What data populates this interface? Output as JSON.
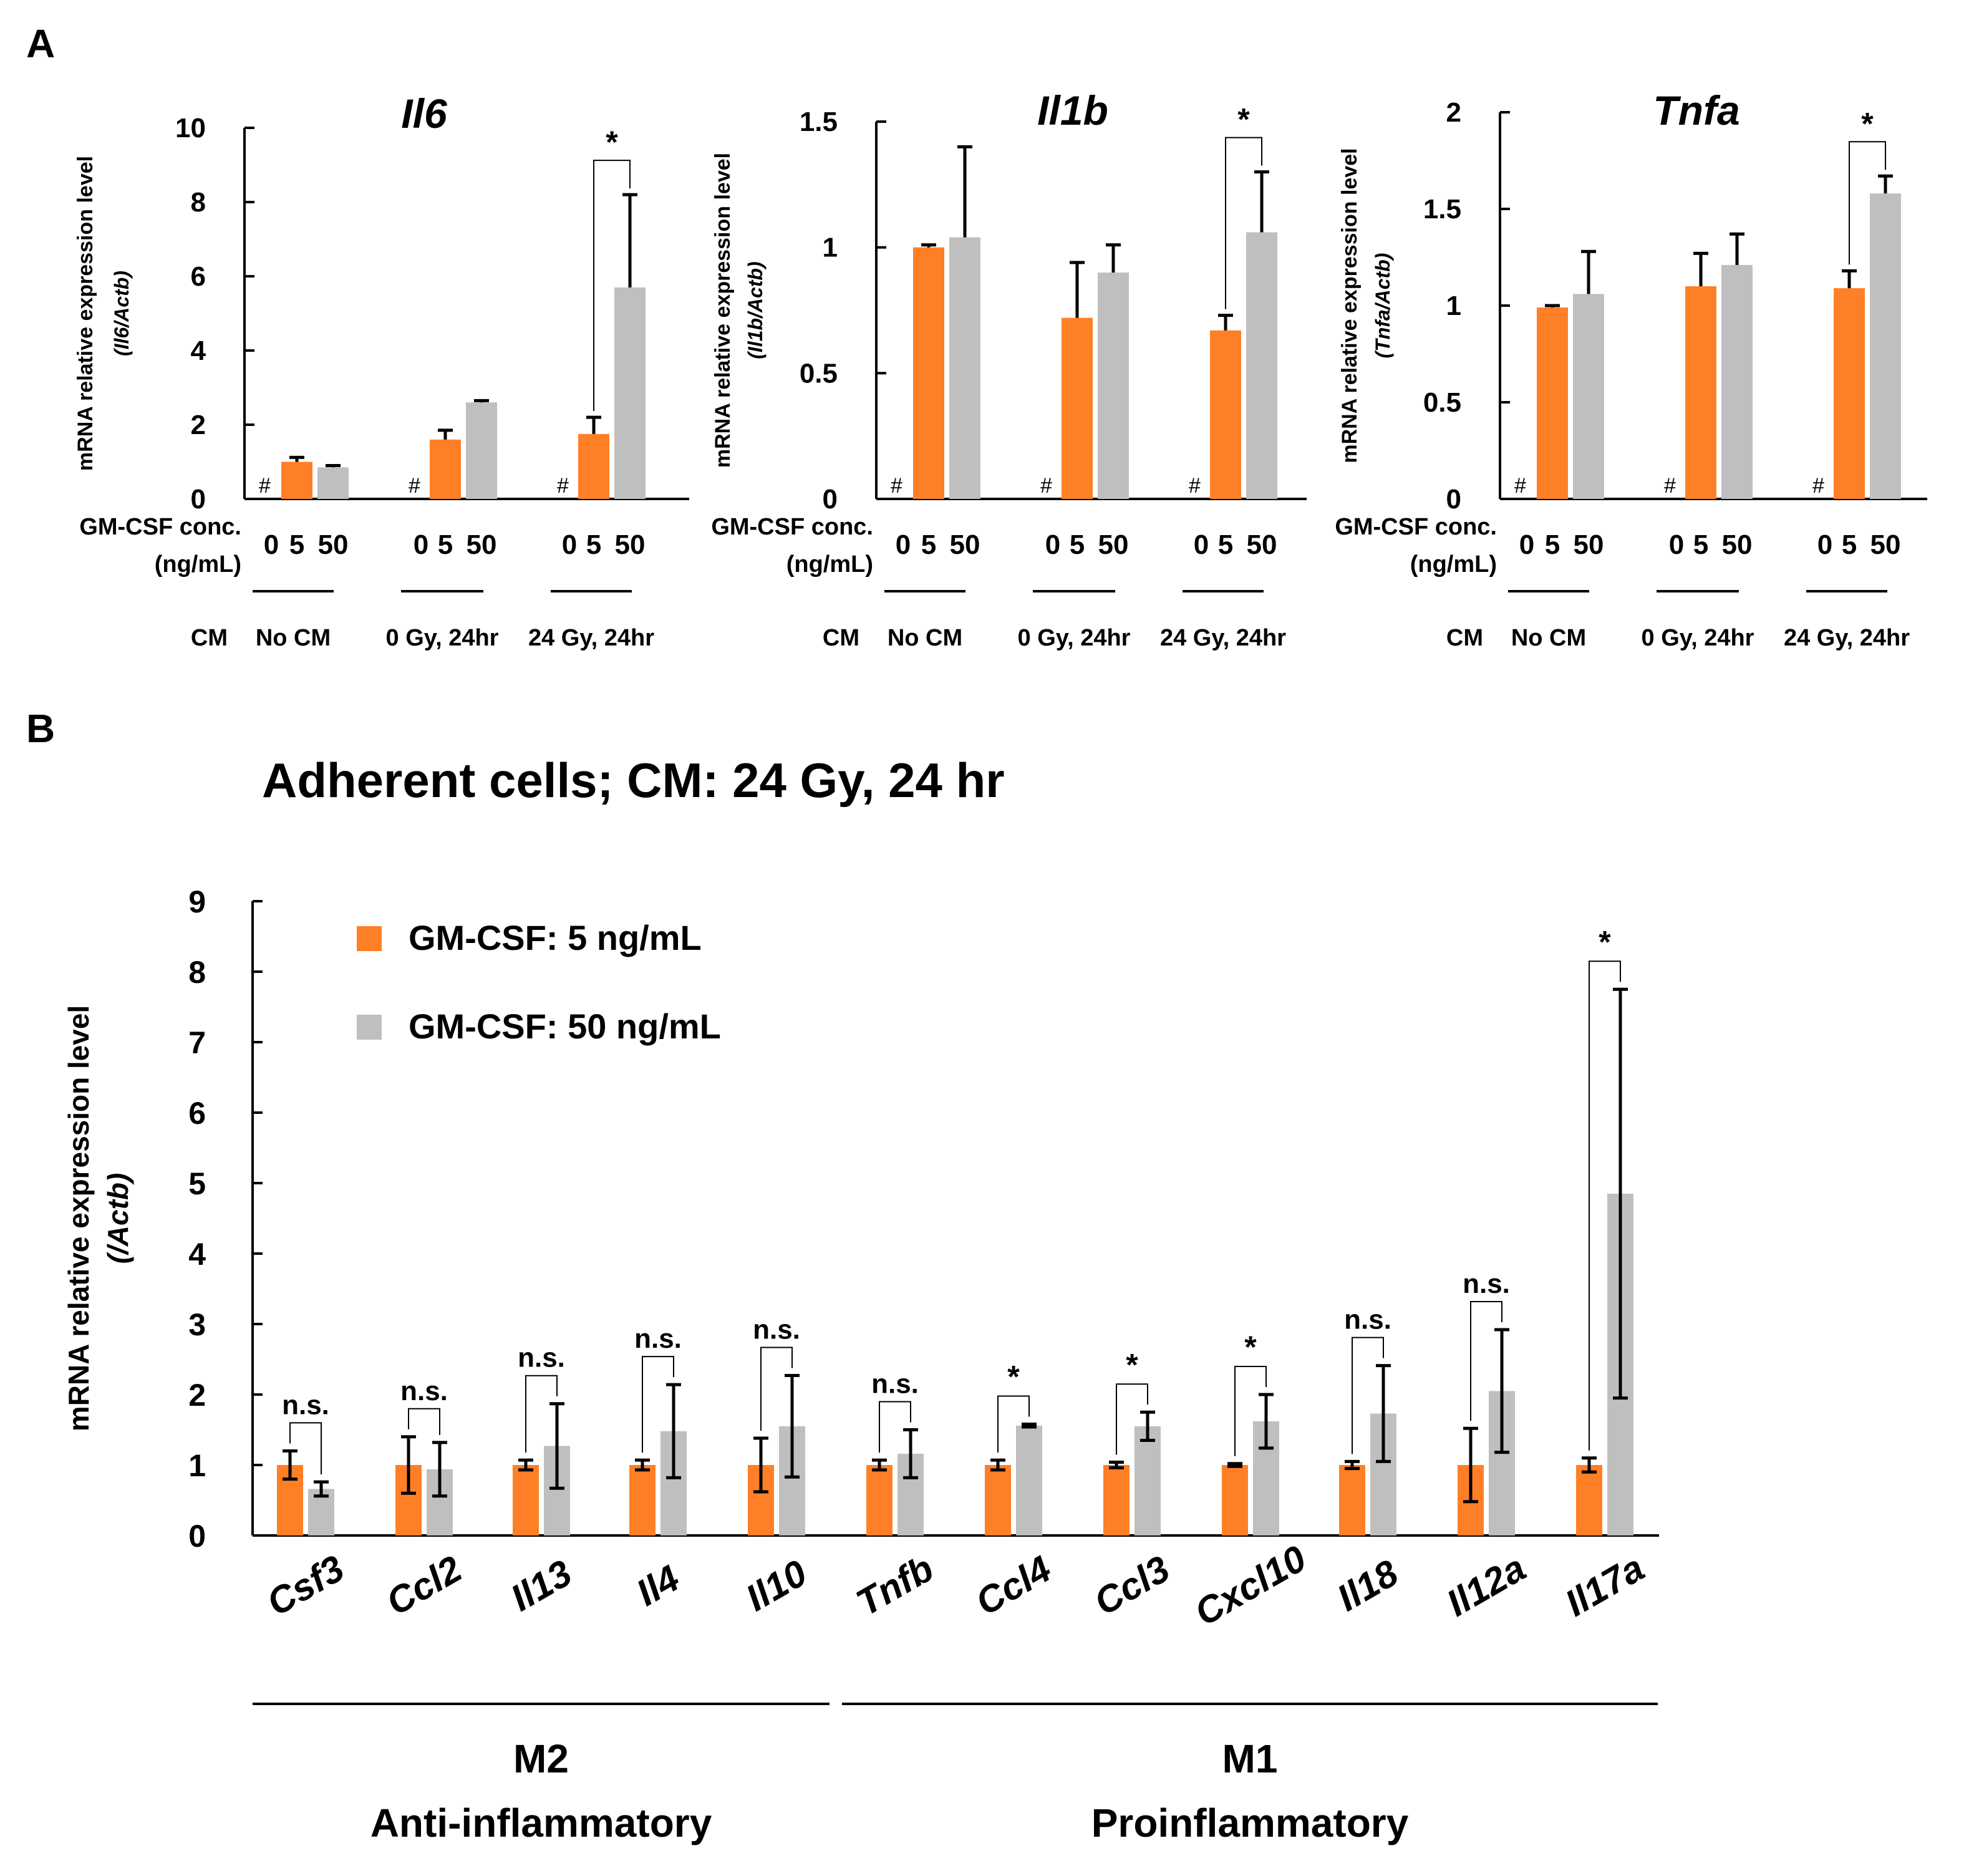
{
  "panel_labels": {
    "a": "A",
    "b": "B"
  },
  "chart_data": [
    {
      "type": "bar",
      "title": "Il6",
      "ylabel": "mRNA relative expression level",
      "ylabel_unit": "(Il6/Actb)",
      "ylim": [
        0,
        10
      ],
      "yticks": [
        "0",
        "2",
        "4",
        "6",
        "8",
        "10"
      ],
      "dose_label_1": "GM-CSF conc.",
      "dose_label_2": "(ng/mL)",
      "doses": [
        "0",
        "5",
        "50"
      ],
      "cm_label": "CM",
      "groups": [
        "No CM",
        "0 Gy, 24hr",
        "24 Gy, 24hr"
      ],
      "missing_marker": "#",
      "series": [
        {
          "name": "5 ng/mL",
          "color": "#FF7F27",
          "values": [
            1.0,
            1.6,
            1.75
          ],
          "errors": [
            0.12,
            0.25,
            0.45
          ]
        },
        {
          "name": "50 ng/mL",
          "color": "#BFBFBF",
          "values": [
            0.85,
            2.6,
            5.7
          ],
          "errors": [
            0.05,
            0.05,
            2.5
          ]
        }
      ],
      "significance": {
        "group_index": 2,
        "label": "*"
      }
    },
    {
      "type": "bar",
      "title": "Il1b",
      "ylabel": "mRNA relative expression level",
      "ylabel_unit": "(Il1b/Actb)",
      "ylim": [
        0,
        1.5
      ],
      "yticks": [
        "0",
        "0.5",
        "1",
        "1.5"
      ],
      "dose_label_1": "GM-CSF conc.",
      "dose_label_2": "(ng/mL)",
      "doses": [
        "0",
        "5",
        "50"
      ],
      "cm_label": "CM",
      "groups": [
        "No CM",
        "0 Gy, 24hr",
        "24 Gy, 24hr"
      ],
      "missing_marker": "#",
      "series": [
        {
          "name": "5 ng/mL",
          "color": "#FF7F27",
          "values": [
            1.0,
            0.72,
            0.67
          ],
          "errors": [
            0.01,
            0.22,
            0.06
          ]
        },
        {
          "name": "50 ng/mL",
          "color": "#BFBFBF",
          "values": [
            1.04,
            0.9,
            1.06
          ],
          "errors": [
            0.36,
            0.11,
            0.24
          ]
        }
      ],
      "significance": {
        "group_index": 2,
        "label": "*"
      }
    },
    {
      "type": "bar",
      "title": "Tnfa",
      "ylabel": "mRNA relative expression level",
      "ylabel_unit": "(Tnfa/Actb)",
      "ylim": [
        0,
        2
      ],
      "yticks": [
        "0",
        "0.5",
        "1",
        "1.5",
        "2"
      ],
      "dose_label_1": "GM-CSF conc.",
      "dose_label_2": "(ng/mL)",
      "doses": [
        "0",
        "5",
        "50"
      ],
      "cm_label": "CM",
      "groups": [
        "No CM",
        "0 Gy, 24hr",
        "24 Gy, 24hr"
      ],
      "missing_marker": "#",
      "series": [
        {
          "name": "5 ng/mL",
          "color": "#FF7F27",
          "values": [
            0.99,
            1.1,
            1.09
          ],
          "errors": [
            0.01,
            0.17,
            0.09
          ]
        },
        {
          "name": "50 ng/mL",
          "color": "#BFBFBF",
          "values": [
            1.06,
            1.21,
            1.58
          ],
          "errors": [
            0.22,
            0.16,
            0.09
          ]
        }
      ],
      "significance": {
        "group_index": 2,
        "label": "*"
      }
    },
    {
      "type": "bar",
      "title": "Adherent cells; CM: 24 Gy, 24 hr",
      "ylabel": "mRNA relative expression level",
      "ylabel_unit": "(/Actb)",
      "ylim": [
        0,
        9
      ],
      "yticks": [
        "0",
        "1",
        "2",
        "3",
        "4",
        "5",
        "6",
        "7",
        "8",
        "9"
      ],
      "categories": [
        "Csf3",
        "Ccl2",
        "Il13",
        "Il4",
        "Il10",
        "Tnfb",
        "Ccl4",
        "Ccl3",
        "Cxcl10",
        "Il18",
        "Il12a",
        "Il17a"
      ],
      "series": [
        {
          "name": "GM-CSF: 5 ng/mL",
          "color": "#FF7F27",
          "values": [
            1.0,
            1.0,
            1.0,
            1.0,
            1.0,
            1.0,
            1.0,
            1.0,
            1.0,
            1.0,
            1.0,
            1.0
          ],
          "errors": [
            0.2,
            0.4,
            0.07,
            0.07,
            0.38,
            0.07,
            0.07,
            0.04,
            0.02,
            0.05,
            0.52,
            0.1
          ]
        },
        {
          "name": "GM-CSF: 50 ng/mL",
          "color": "#BFBFBF",
          "values": [
            0.66,
            0.94,
            1.27,
            1.48,
            1.55,
            1.16,
            1.56,
            1.55,
            1.62,
            1.73,
            2.05,
            4.85
          ],
          "errors": [
            0.1,
            0.38,
            0.6,
            0.66,
            0.72,
            0.34,
            0.02,
            0.2,
            0.38,
            0.68,
            0.87,
            2.9
          ]
        }
      ],
      "significance": [
        "n.s.",
        "n.s.",
        "n.s.",
        "n.s.",
        "n.s.",
        "n.s.",
        "*",
        "*",
        "*",
        "n.s.",
        "n.s.",
        "*"
      ],
      "category_groups": [
        {
          "name": "M2",
          "subtitle": "Anti-inflammatory",
          "range": [
            0,
            4
          ]
        },
        {
          "name": "M1",
          "subtitle": "Proinflammatory",
          "range": [
            5,
            11
          ]
        }
      ]
    }
  ]
}
